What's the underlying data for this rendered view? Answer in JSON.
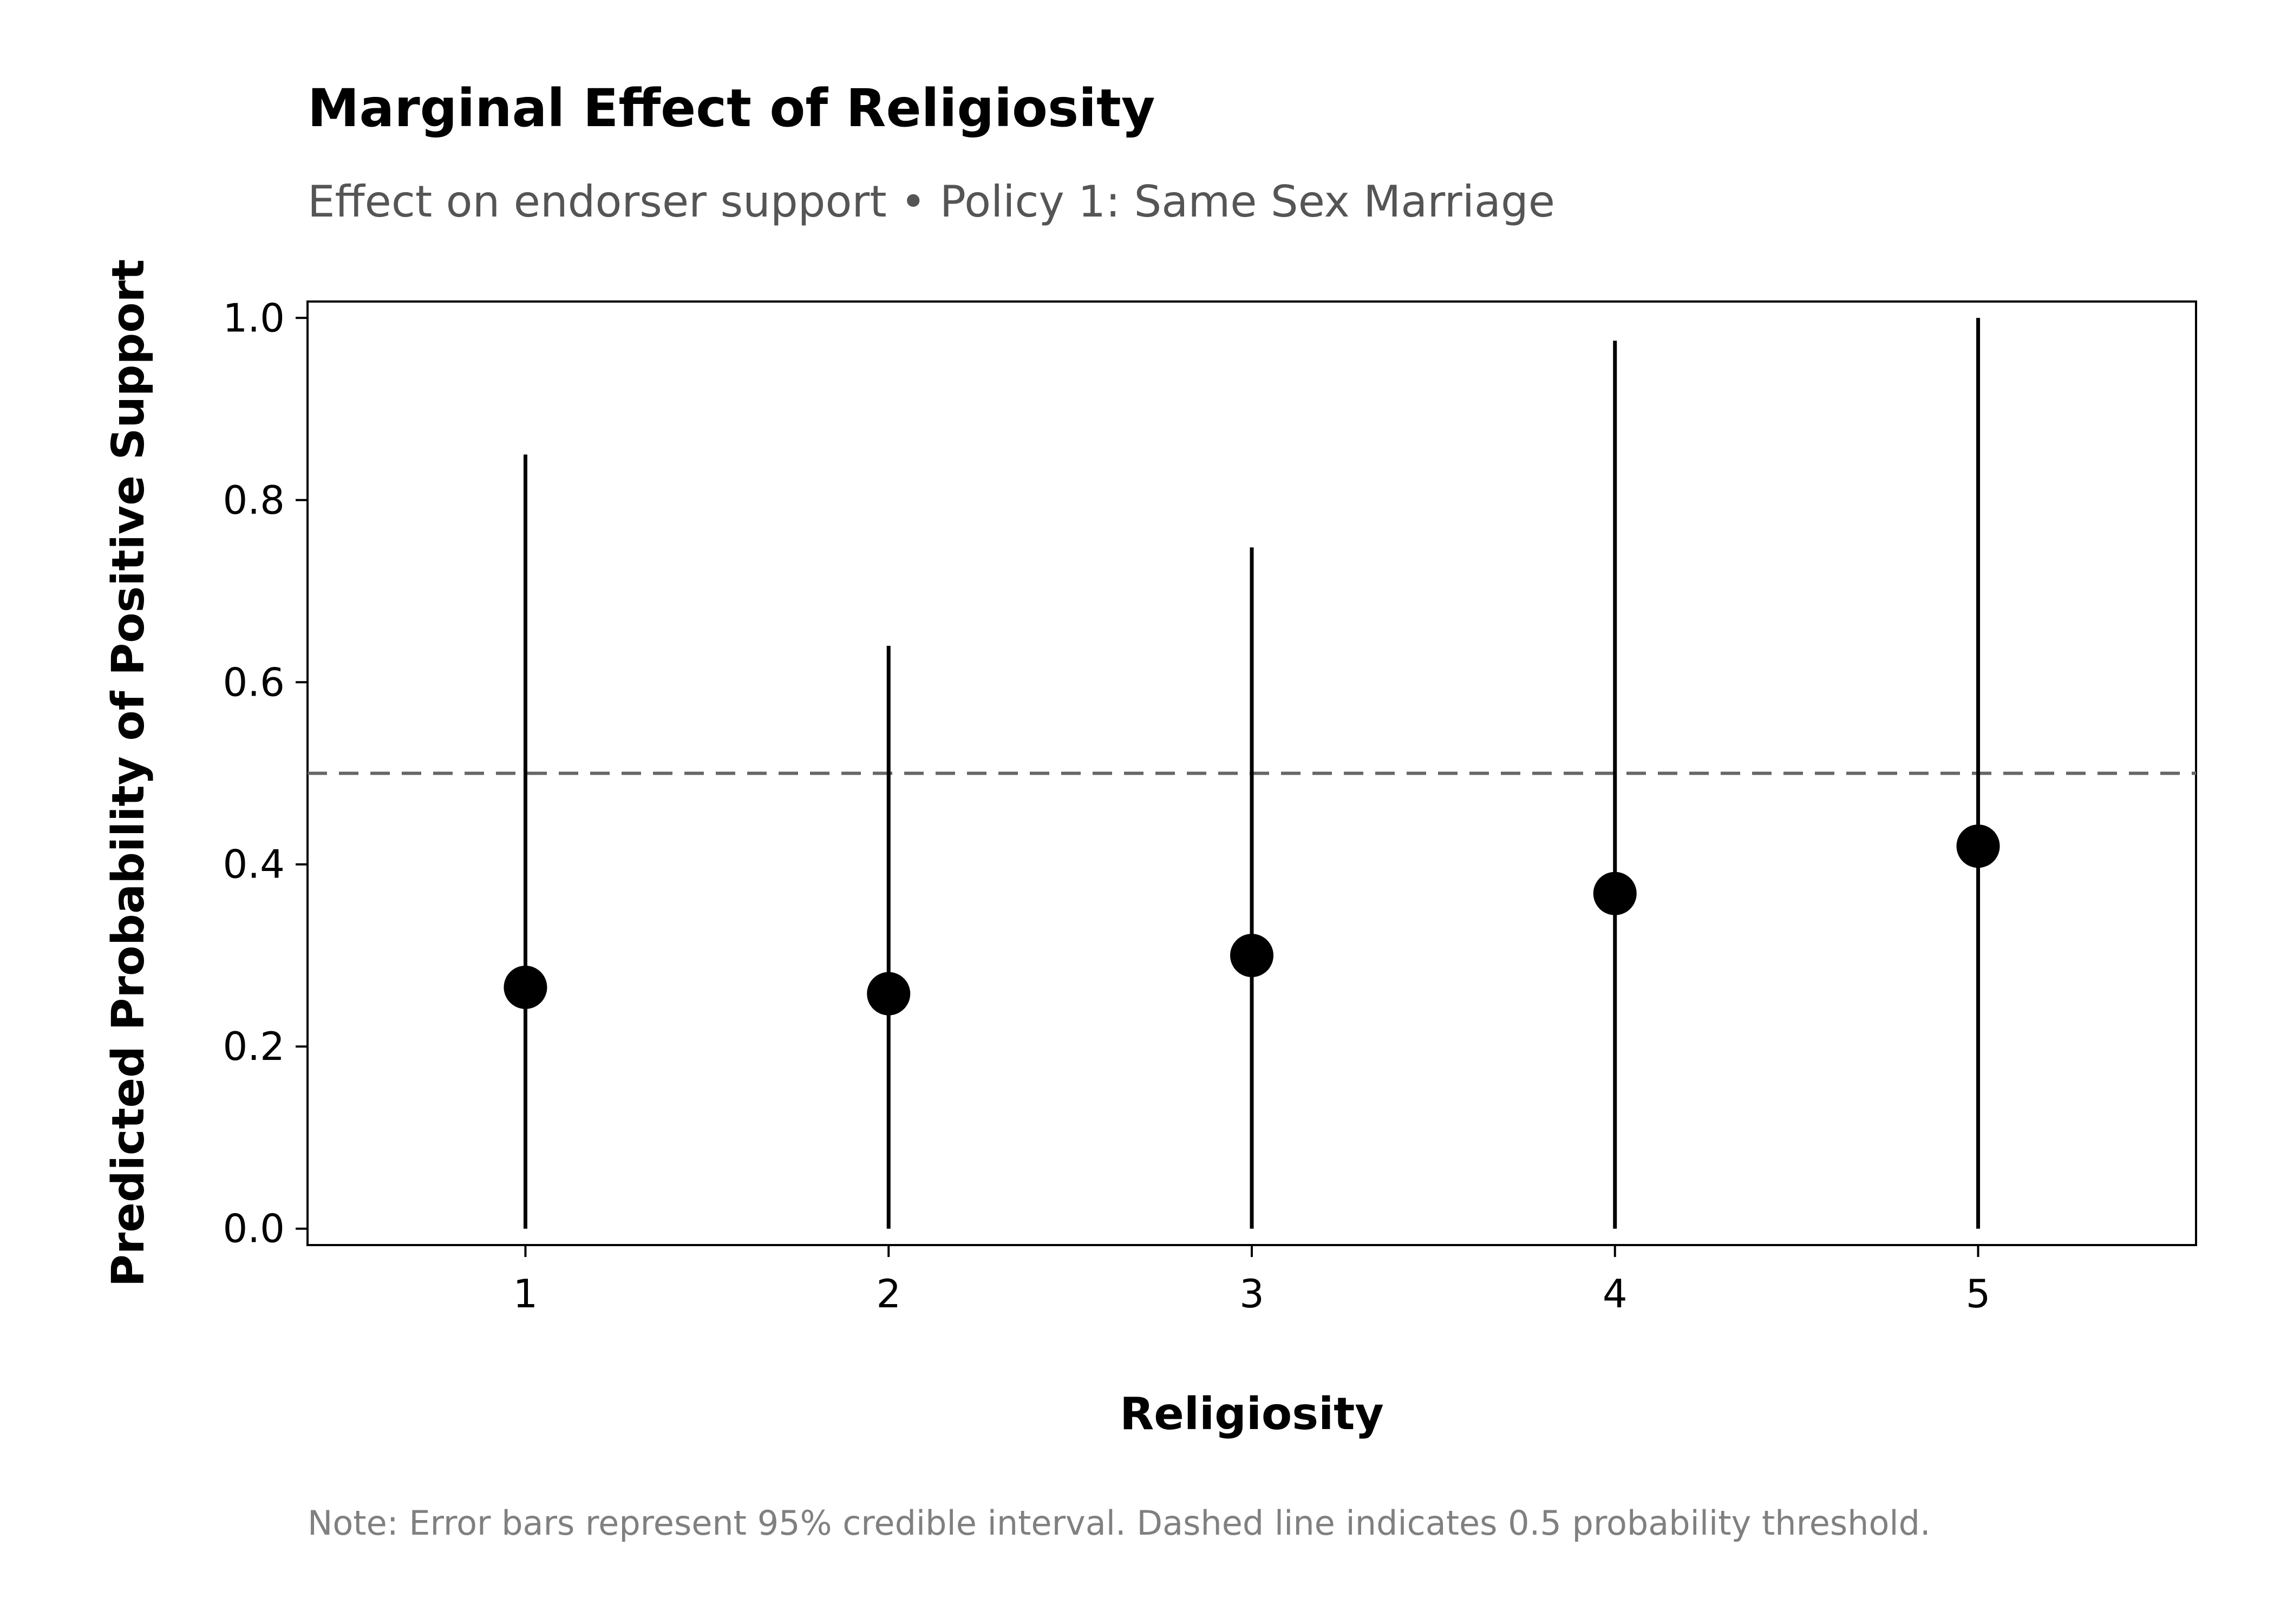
{
  "chart_data": {
    "type": "scatter",
    "title": "Marginal Effect of Religiosity",
    "subtitle": "Effect on endorser support • Policy 1: Same Sex Marriage",
    "xlabel": "Religiosity",
    "ylabel": "Predicted Probability of Positive Support",
    "note": "Note: Error bars represent 95% credible interval. Dashed line indicates 0.5 probability threshold.",
    "x_ticks": [
      "1",
      "2",
      "3",
      "4",
      "5"
    ],
    "y_ticks": [
      "0.0",
      "0.2",
      "0.4",
      "0.6",
      "0.8",
      "1.0"
    ],
    "xlim": [
      0.4,
      5.6
    ],
    "ylim": [
      -0.018,
      1.018
    ],
    "grid": false,
    "reference_line": {
      "y": 0.5,
      "style": "dashed",
      "color": "#666666"
    },
    "points": [
      {
        "x": 1,
        "y": 0.265,
        "lower": 0.0,
        "upper": 0.85
      },
      {
        "x": 2,
        "y": 0.258,
        "lower": 0.0,
        "upper": 0.64
      },
      {
        "x": 3,
        "y": 0.3,
        "lower": 0.0,
        "upper": 0.748
      },
      {
        "x": 4,
        "y": 0.368,
        "lower": 0.0,
        "upper": 0.975
      },
      {
        "x": 5,
        "y": 0.42,
        "lower": 0.0,
        "upper": 1.0
      }
    ],
    "colors": {
      "point": "#000000",
      "errorbar": "#000000",
      "reference": "#666666"
    }
  }
}
